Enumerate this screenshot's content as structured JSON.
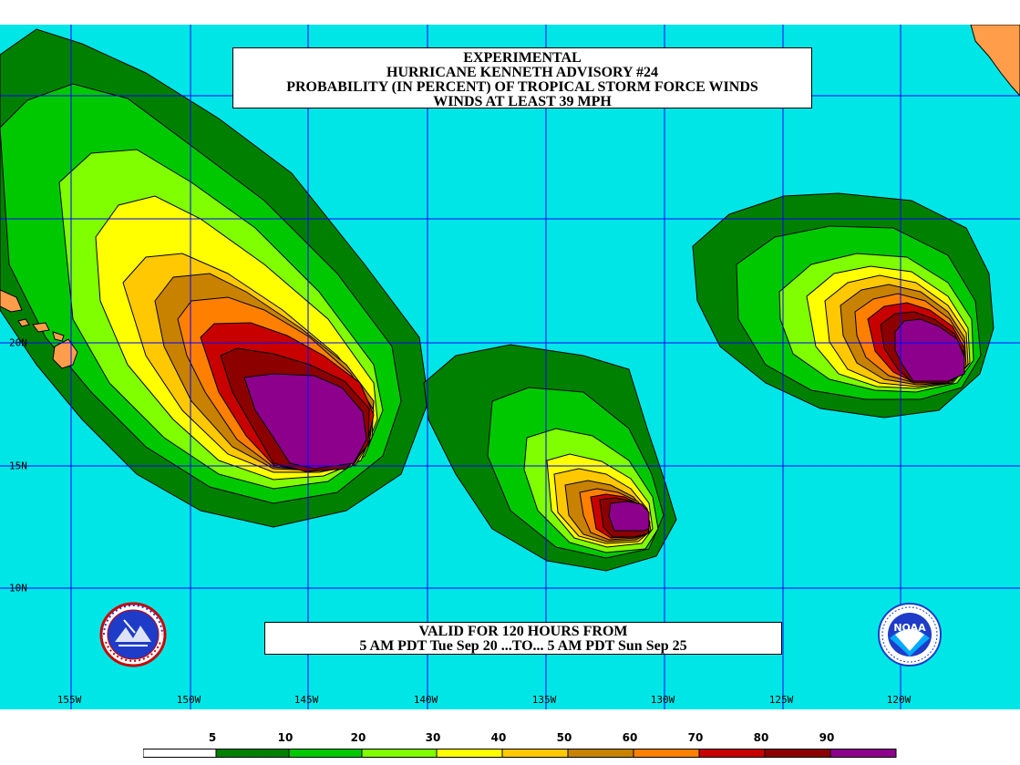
{
  "title": {
    "line1": "EXPERIMENTAL",
    "line2": "HURRICANE KENNETH ADVISORY #24",
    "line3": "PROBABILITY (IN PERCENT) OF TROPICAL STORM FORCE WINDS",
    "line4": "WINDS AT LEAST 39 MPH"
  },
  "valid": {
    "line1": "VALID FOR 120 HOURS FROM",
    "line2": "5 AM PDT Tue Sep 20 ...TO... 5 AM PDT Sun Sep 25"
  },
  "axes": {
    "longitudes": [
      "155W",
      "150W",
      "145W",
      "140W",
      "135W",
      "130W",
      "125W",
      "120W"
    ],
    "latitudes": [
      "20N",
      "15N",
      "10N"
    ]
  },
  "legend": {
    "labels": [
      "5",
      "10",
      "20",
      "30",
      "40",
      "50",
      "60",
      "70",
      "80",
      "90"
    ],
    "colors": [
      "#ffffff",
      "#008000",
      "#00c800",
      "#80ff00",
      "#ffff00",
      "#ffc800",
      "#c88200",
      "#ff8000",
      "#c80000",
      "#8c0000",
      "#8c008c"
    ]
  },
  "colors": {
    "ocean": "#00e6e6",
    "land": "#ff9d4a",
    "grid": "#0000ff"
  },
  "logos": [
    "nws-logo",
    "noaa-logo"
  ],
  "noaa_text": "NOAA"
}
